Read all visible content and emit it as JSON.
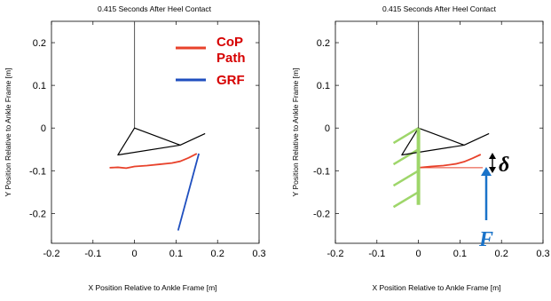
{
  "colors": {
    "cop": "#e8422b",
    "grf": "#1f4fbf",
    "frame": "#000000",
    "spring": "#9ed66a",
    "arrow": "#1a73c9",
    "legend_text": "#d60000"
  },
  "chart_data": [
    {
      "type": "line",
      "title": "0.415 Seconds After Heel Contact",
      "xlabel": "X Position Relative to Ankle Frame [m]",
      "ylabel": "Y Position Relative to Ankle Frame [m]",
      "xlim": [
        -0.2,
        0.3
      ],
      "ylim": [
        -0.27,
        0.25
      ],
      "xticks": [
        "-0.2",
        "-0.1",
        "0",
        "0.1",
        "0.2",
        "0.3"
      ],
      "yticks": [
        "0.2",
        "0.1",
        "0",
        "-0.1",
        "-0.2"
      ],
      "ytick_values": [
        0.2,
        0.1,
        0,
        -0.1,
        -0.2
      ],
      "xtick_values": [
        -0.2,
        -0.1,
        0,
        0.1,
        0.2,
        0.3
      ],
      "grid": false,
      "legend": {
        "placement": "top-right",
        "entries": [
          {
            "label_line1": "CoP",
            "label_line2": "Path",
            "color": "#e8422b"
          },
          {
            "label_line1": "GRF",
            "label_line2": "",
            "color": "#1f4fbf"
          }
        ]
      },
      "series": [
        {
          "name": "CoP Path",
          "x": [
            -0.06,
            -0.04,
            -0.02,
            0.0,
            0.03,
            0.06,
            0.09,
            0.11,
            0.13,
            0.15
          ],
          "y": [
            -0.093,
            -0.092,
            -0.094,
            -0.09,
            -0.088,
            -0.085,
            -0.082,
            -0.078,
            -0.07,
            -0.06
          ]
        },
        {
          "name": "GRF",
          "x": [
            0.155,
            0.105
          ],
          "y": [
            -0.06,
            -0.24
          ]
        },
        {
          "name": "shank",
          "x": [
            0.0,
            0.0
          ],
          "y": [
            0.25,
            0.0
          ]
        },
        {
          "name": "foot",
          "x": [
            0.0,
            -0.04,
            0.11,
            0.0,
            0.11,
            0.17
          ],
          "y": [
            0.0,
            -0.063,
            -0.04,
            0.0,
            -0.04,
            -0.013
          ]
        }
      ]
    },
    {
      "type": "line",
      "title": "0.415 Seconds After Heel Contact",
      "xlabel": "X Position Relative to Ankle Frame [m]",
      "ylabel": "Y Position Relative to Ankle Frame [m]",
      "xlim": [
        -0.2,
        0.3
      ],
      "ylim": [
        -0.27,
        0.25
      ],
      "xticks": [
        "-0.2",
        "-0.1",
        "0",
        "0.1",
        "0.2",
        "0.3"
      ],
      "yticks": [
        "0.2",
        "0.1",
        "0",
        "-0.1",
        "-0.2"
      ],
      "ytick_values": [
        0.2,
        0.1,
        0,
        -0.1,
        -0.2
      ],
      "xtick_values": [
        -0.2,
        -0.1,
        0,
        0.1,
        0.2,
        0.3
      ],
      "grid": false,
      "annotations": {
        "force_symbol": "F",
        "delta_symbol": "δ"
      },
      "series": [
        {
          "name": "CoP Path",
          "x": [
            0.0,
            0.03,
            0.06,
            0.09,
            0.11,
            0.13,
            0.15
          ],
          "y": [
            -0.093,
            -0.09,
            -0.088,
            -0.084,
            -0.079,
            -0.071,
            -0.062
          ]
        },
        {
          "name": "reference",
          "x": [
            0.0,
            0.155
          ],
          "y": [
            -0.093,
            -0.093
          ]
        },
        {
          "name": "shank",
          "x": [
            0.0,
            0.0
          ],
          "y": [
            0.25,
            0.0
          ]
        },
        {
          "name": "foot",
          "x": [
            0.0,
            -0.04,
            0.11,
            0.0,
            0.11,
            0.17
          ],
          "y": [
            0.0,
            -0.063,
            -0.04,
            0.0,
            -0.04,
            -0.013
          ]
        },
        {
          "name": "ground-spring-wall",
          "x": [
            0.0,
            0.0
          ],
          "y": [
            0.0,
            -0.18
          ]
        }
      ],
      "spring_hatches": [
        {
          "x0": 0.0,
          "y0": 0.0,
          "x1": -0.06,
          "y1": -0.035
        },
        {
          "x0": 0.0,
          "y0": -0.05,
          "x1": -0.06,
          "y1": -0.085
        },
        {
          "x0": 0.0,
          "y0": -0.1,
          "x1": -0.06,
          "y1": -0.135
        },
        {
          "x0": 0.0,
          "y0": -0.15,
          "x1": -0.06,
          "y1": -0.185
        }
      ]
    }
  ]
}
